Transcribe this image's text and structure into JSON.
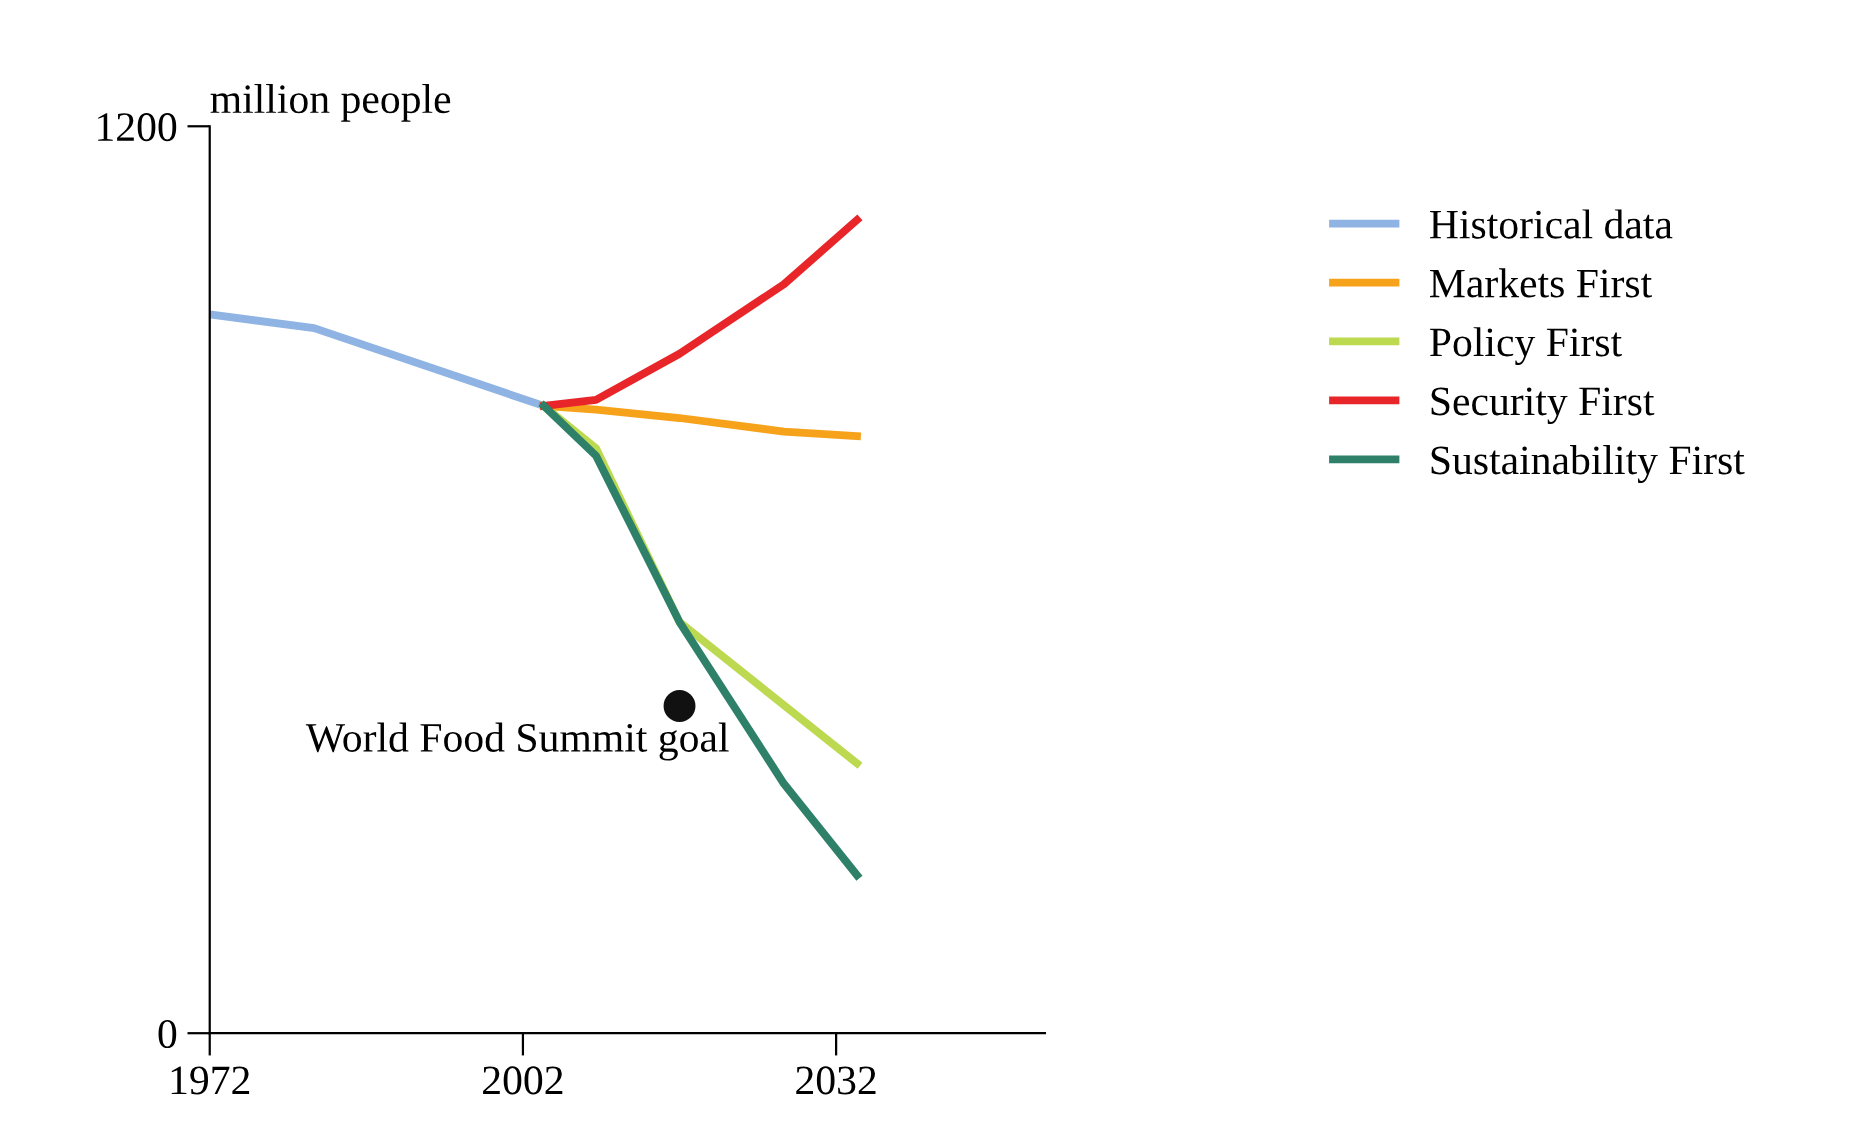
{
  "chart_data": {
    "type": "line",
    "ylabel": "million people",
    "xlim": [
      1972,
      2052
    ],
    "ylim": [
      0,
      1200
    ],
    "xticks": [
      1972,
      2002,
      2032
    ],
    "yticks": [
      0,
      1200
    ],
    "grid": false,
    "legend": "right",
    "line_style": "solid",
    "annotations": [
      {
        "text": "World Food Summit goal",
        "x": 2017,
        "y": 433
      }
    ],
    "series": [
      {
        "name": "Historical data",
        "color": "#8fb4e3",
        "x": [
          1972,
          1982,
          2004
        ],
        "values": [
          951,
          933,
          830
        ]
      },
      {
        "name": "Markets First",
        "color": "#f7a21b",
        "x": [
          2004,
          2009,
          2017,
          2027,
          2034
        ],
        "values": [
          830,
          825,
          814,
          796,
          790
        ]
      },
      {
        "name": "Policy First",
        "color": "#bcd94f",
        "x": [
          2004,
          2009,
          2017,
          2034
        ],
        "values": [
          830,
          774,
          544,
          357
        ]
      },
      {
        "name": "Security First",
        "color": "#e8262a",
        "x": [
          2004,
          2009,
          2017,
          2027,
          2034
        ],
        "values": [
          830,
          838,
          899,
          991,
          1076
        ]
      },
      {
        "name": "Sustainability First",
        "color": "#2e8068",
        "x": [
          2004,
          2009,
          2017,
          2027,
          2034
        ],
        "values": [
          830,
          764,
          544,
          330,
          209
        ]
      },
      {
        "type": "scatter",
        "marker": "circle",
        "color": "#111111",
        "x": [
          2017
        ],
        "values": [
          433
        ]
      }
    ]
  }
}
